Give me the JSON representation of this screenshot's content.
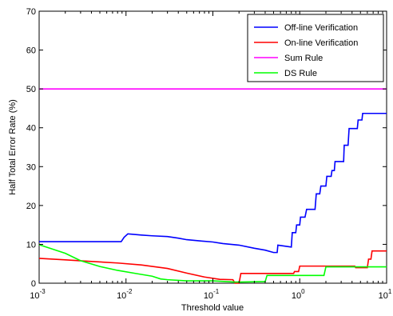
{
  "chart_data": {
    "type": "line",
    "title": "",
    "xlabel": "Threshold value",
    "ylabel": "Half Total Error Rate (%)",
    "x_scale": "log",
    "xlim": [
      0.001,
      10
    ],
    "ylim": [
      0,
      70
    ],
    "grid": false,
    "legend_position": "top-right",
    "x_ticks": [
      {
        "value": 0.001,
        "base": "10",
        "exp": "-3"
      },
      {
        "value": 0.01,
        "base": "10",
        "exp": "-2"
      },
      {
        "value": 0.1,
        "base": "10",
        "exp": "-1"
      },
      {
        "value": 1,
        "base": "10",
        "exp": "0"
      },
      {
        "value": 10,
        "base": "10",
        "exp": "1"
      }
    ],
    "y_ticks": [
      {
        "value": 0,
        "label": "0"
      },
      {
        "value": 10,
        "label": "10"
      },
      {
        "value": 20,
        "label": "20"
      },
      {
        "value": 30,
        "label": "30"
      },
      {
        "value": 40,
        "label": "40"
      },
      {
        "value": 50,
        "label": "50"
      },
      {
        "value": 60,
        "label": "60"
      },
      {
        "value": 70,
        "label": "70"
      }
    ],
    "series": [
      {
        "name": "Off-line Verification",
        "color": "#0000ff",
        "points": [
          [
            0.001,
            10.7
          ],
          [
            0.0088,
            10.7
          ],
          [
            0.0095,
            11.8
          ],
          [
            0.0105,
            12.7
          ],
          [
            0.015,
            12.4
          ],
          [
            0.02,
            12.2
          ],
          [
            0.03,
            12.0
          ],
          [
            0.04,
            11.6
          ],
          [
            0.05,
            11.2
          ],
          [
            0.07,
            10.9
          ],
          [
            0.1,
            10.6
          ],
          [
            0.13,
            10.2
          ],
          [
            0.2,
            9.8
          ],
          [
            0.3,
            9.0
          ],
          [
            0.4,
            8.5
          ],
          [
            0.5,
            7.9
          ],
          [
            0.55,
            7.9
          ],
          [
            0.56,
            9.8
          ],
          [
            0.8,
            9.3
          ],
          [
            0.82,
            13.0
          ],
          [
            0.9,
            13.0
          ],
          [
            0.92,
            15.0
          ],
          [
            1.0,
            15.0
          ],
          [
            1.02,
            17.0
          ],
          [
            1.15,
            17.0
          ],
          [
            1.2,
            19.0
          ],
          [
            1.5,
            19.0
          ],
          [
            1.55,
            23.0
          ],
          [
            1.7,
            23.0
          ],
          [
            1.75,
            25.0
          ],
          [
            2.0,
            25.0
          ],
          [
            2.05,
            27.5
          ],
          [
            2.3,
            27.5
          ],
          [
            2.35,
            29.0
          ],
          [
            2.5,
            29.0
          ],
          [
            2.55,
            31.3
          ],
          [
            3.2,
            31.3
          ],
          [
            3.25,
            35.5
          ],
          [
            3.6,
            35.5
          ],
          [
            3.7,
            39.8
          ],
          [
            4.6,
            39.8
          ],
          [
            4.7,
            42.0
          ],
          [
            5.2,
            42.0
          ],
          [
            5.3,
            43.7
          ],
          [
            10,
            43.7
          ]
        ]
      },
      {
        "name": "On-line Verification",
        "color": "#ff0000",
        "points": [
          [
            0.001,
            6.4
          ],
          [
            0.002,
            6.0
          ],
          [
            0.004,
            5.6
          ],
          [
            0.008,
            5.2
          ],
          [
            0.015,
            4.7
          ],
          [
            0.03,
            3.8
          ],
          [
            0.05,
            2.6
          ],
          [
            0.08,
            1.6
          ],
          [
            0.12,
            1.0
          ],
          [
            0.17,
            0.9
          ],
          [
            0.18,
            0.0
          ],
          [
            0.2,
            0.0
          ],
          [
            0.21,
            2.5
          ],
          [
            0.85,
            2.5
          ],
          [
            0.87,
            3.0
          ],
          [
            0.97,
            3.0
          ],
          [
            1.0,
            4.4
          ],
          [
            2.0,
            4.4
          ],
          [
            2.05,
            4.4
          ],
          [
            4.3,
            4.4
          ],
          [
            4.4,
            4.0
          ],
          [
            6.0,
            4.0
          ],
          [
            6.2,
            6.2
          ],
          [
            6.6,
            6.2
          ],
          [
            6.8,
            8.3
          ],
          [
            10,
            8.3
          ]
        ]
      },
      {
        "name": "Sum Rule",
        "color": "#ff00ff",
        "points": [
          [
            0.001,
            50
          ],
          [
            10,
            50
          ]
        ]
      },
      {
        "name": "DS Rule",
        "color": "#00ff00",
        "points": [
          [
            0.001,
            9.9
          ],
          [
            0.002,
            7.7
          ],
          [
            0.003,
            5.8
          ],
          [
            0.005,
            4.3
          ],
          [
            0.008,
            3.3
          ],
          [
            0.013,
            2.5
          ],
          [
            0.02,
            1.8
          ],
          [
            0.025,
            1.1
          ],
          [
            0.03,
            0.9
          ],
          [
            0.05,
            0.6
          ],
          [
            0.1,
            0.6
          ],
          [
            0.18,
            0.3
          ],
          [
            0.2,
            0.3
          ],
          [
            0.35,
            0.4
          ],
          [
            0.4,
            0.4
          ],
          [
            0.42,
            2.0
          ],
          [
            1.9,
            2.0
          ],
          [
            2.0,
            4.2
          ],
          [
            10,
            4.2
          ]
        ]
      }
    ]
  }
}
